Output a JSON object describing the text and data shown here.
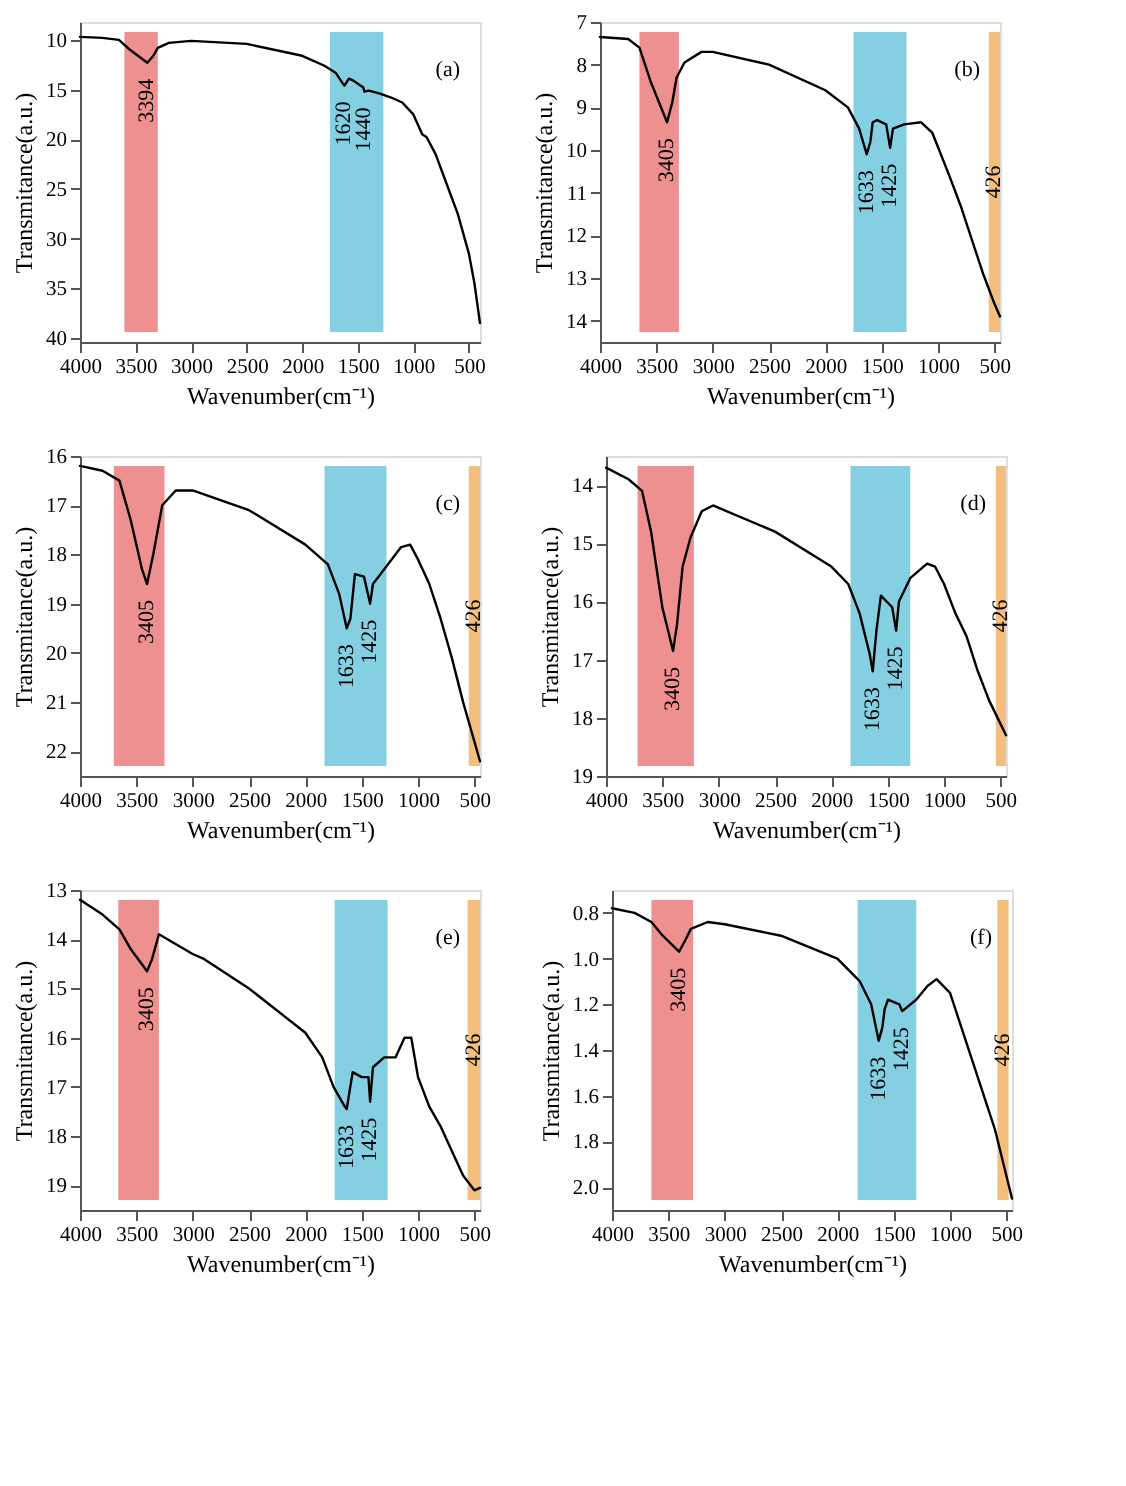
{
  "chart_data": [
    {
      "type": "line",
      "xlabel": "Wavenumber(cm⁻¹)",
      "ylabel": "Transmitance(a.u.)",
      "xlim": [
        4000,
        400
      ],
      "ylim": [
        40.4,
        8.2
      ],
      "xticks": [
        4000,
        3500,
        3000,
        2500,
        2000,
        1500,
        1000,
        500
      ],
      "yticks": [
        10,
        15,
        20,
        25,
        30,
        35,
        40
      ],
      "x": [
        4000,
        3800,
        3650,
        3550,
        3394,
        3340,
        3300,
        3200,
        3000,
        2500,
        2000,
        1800,
        1700,
        1640,
        1620,
        1580,
        1540,
        1450,
        1440,
        1400,
        1300,
        1200,
        1100,
        1000,
        920,
        880,
        800,
        700,
        600,
        500,
        450,
        400
      ],
      "series": [
        {
          "color": "#000000",
          "values": [
            9.7,
            9.8,
            10.0,
            11.0,
            12.3,
            11.6,
            10.8,
            10.3,
            10.1,
            10.4,
            11.6,
            12.6,
            13.3,
            14.3,
            14.6,
            13.9,
            14.1,
            14.8,
            15.2,
            15.1,
            15.4,
            15.8,
            16.3,
            17.5,
            19.5,
            19.8,
            21.5,
            24.5,
            27.5,
            31.5,
            34.5,
            38.5
          ]
        }
      ],
      "bands": [
        {
          "axis": "x",
          "from": 3600,
          "to": 3300,
          "color": "#e8696b"
        },
        {
          "axis": "x",
          "from": 1750,
          "to": 1270,
          "color": "#5bc0d8"
        }
      ],
      "annotations": [
        "(a)",
        {
          "text": "3394",
          "x": 3394,
          "y": 12.3
        },
        {
          "text": "1620",
          "x": 1620,
          "y": 14.6
        },
        {
          "text": "1440",
          "x": 1440,
          "y": 15.2
        }
      ]
    },
    {
      "type": "line",
      "xlabel": "Wavenumber(cm⁻¹)",
      "ylabel": "Transmitance(a.u.)",
      "xlim": [
        4000,
        450
      ],
      "ylim": [
        14.5,
        7
      ],
      "xticks": [
        4000,
        3500,
        3000,
        2500,
        2000,
        1500,
        1000,
        500
      ],
      "yticks": [
        7,
        8,
        9,
        10,
        11,
        12,
        13,
        14
      ],
      "x": [
        4000,
        3750,
        3650,
        3550,
        3405,
        3360,
        3320,
        3250,
        3100,
        3000,
        2500,
        2000,
        1800,
        1700,
        1633,
        1600,
        1580,
        1540,
        1460,
        1425,
        1400,
        1300,
        1150,
        1050,
        900,
        800,
        700,
        600,
        500,
        450
      ],
      "series": [
        {
          "color": "#000000",
          "values": [
            7.35,
            7.4,
            7.6,
            8.4,
            9.35,
            8.9,
            8.3,
            7.95,
            7.7,
            7.7,
            8.0,
            8.6,
            9.0,
            9.5,
            10.1,
            9.8,
            9.35,
            9.3,
            9.4,
            9.95,
            9.5,
            9.4,
            9.35,
            9.6,
            10.6,
            11.3,
            12.1,
            12.9,
            13.6,
            13.9
          ]
        }
      ],
      "bands": [
        {
          "axis": "x",
          "from": 3650,
          "to": 3300,
          "color": "#e8696b"
        },
        {
          "axis": "x",
          "from": 1750,
          "to": 1280,
          "color": "#5bc0d8"
        },
        {
          "axis": "x",
          "from": 550,
          "to": 450,
          "color": "#f0a850"
        }
      ],
      "annotations": [
        "(b)",
        {
          "text": "3405",
          "x": 3405,
          "y": 9.35
        },
        {
          "text": "1633",
          "x": 1633,
          "y": 10.1
        },
        {
          "text": "1425",
          "x": 1425,
          "y": 9.95
        },
        "426"
      ]
    },
    {
      "type": "line",
      "xlabel": "Wavenumber(cm⁻¹)",
      "ylabel": "Transmitance(a.u.)",
      "xlim": [
        4000,
        450
      ],
      "ylim": [
        22.5,
        16
      ],
      "xticks": [
        4000,
        3500,
        3000,
        2500,
        2000,
        1500,
        1000,
        500
      ],
      "yticks": [
        16,
        17,
        18,
        19,
        20,
        21,
        22
      ],
      "x": [
        4000,
        3800,
        3650,
        3550,
        3450,
        3405,
        3350,
        3270,
        3150,
        3000,
        2500,
        2000,
        1800,
        1700,
        1633,
        1600,
        1560,
        1480,
        1425,
        1400,
        1300,
        1150,
        1070,
        1000,
        900,
        800,
        700,
        600,
        500,
        450
      ],
      "series": [
        {
          "color": "#000000",
          "values": [
            16.2,
            16.3,
            16.5,
            17.3,
            18.3,
            18.6,
            18.0,
            17.0,
            16.7,
            16.7,
            17.1,
            17.8,
            18.2,
            18.8,
            19.5,
            19.3,
            18.4,
            18.45,
            19.0,
            18.6,
            18.3,
            17.85,
            17.8,
            18.1,
            18.6,
            19.3,
            20.1,
            21.0,
            21.8,
            22.2
          ]
        }
      ],
      "bands": [
        {
          "axis": "x",
          "from": 3700,
          "to": 3250,
          "color": "#e8696b"
        },
        {
          "axis": "x",
          "from": 1830,
          "to": 1280,
          "color": "#5bc0d8"
        },
        {
          "axis": "x",
          "from": 550,
          "to": 450,
          "color": "#f0a850"
        }
      ],
      "annotations": [
        "(c)",
        {
          "text": "3405",
          "x": 3405,
          "y": 18.6
        },
        {
          "text": "1633",
          "x": 1633,
          "y": 19.5
        },
        {
          "text": "1425",
          "x": 1425,
          "y": 19.0
        },
        "426"
      ]
    },
    {
      "type": "line",
      "xlabel": "Wavenumber(cm⁻¹)",
      "ylabel": "Transmitance(a.u.)",
      "xlim": [
        4000,
        450
      ],
      "ylim": [
        19,
        13.5
      ],
      "xticks": [
        4000,
        3500,
        3000,
        2500,
        2000,
        1500,
        1000,
        500
      ],
      "yticks": [
        14,
        15,
        16,
        17,
        18,
        19
      ],
      "x": [
        4000,
        3800,
        3680,
        3600,
        3500,
        3405,
        3370,
        3320,
        3250,
        3150,
        3050,
        2500,
        2000,
        1850,
        1750,
        1660,
        1633,
        1600,
        1560,
        1460,
        1425,
        1400,
        1300,
        1150,
        1080,
        1000,
        900,
        800,
        700,
        600,
        500,
        450
      ],
      "series": [
        {
          "color": "#000000",
          "values": [
            13.7,
            13.9,
            14.1,
            14.8,
            16.1,
            16.85,
            16.4,
            15.4,
            14.9,
            14.45,
            14.35,
            14.8,
            15.4,
            15.7,
            16.2,
            16.9,
            17.2,
            16.5,
            15.9,
            16.1,
            16.5,
            16.0,
            15.6,
            15.35,
            15.4,
            15.7,
            16.2,
            16.6,
            17.2,
            17.7,
            18.1,
            18.3
          ]
        }
      ],
      "bands": [
        {
          "axis": "x",
          "from": 3720,
          "to": 3220,
          "color": "#e8696b"
        },
        {
          "axis": "x",
          "from": 1830,
          "to": 1300,
          "color": "#5bc0d8"
        },
        {
          "axis": "x",
          "from": 540,
          "to": 450,
          "color": "#f0a850"
        }
      ],
      "annotations": [
        "(d)",
        {
          "text": "3405",
          "x": 3405,
          "y": 16.85
        },
        {
          "text": "1633",
          "x": 1633,
          "y": 17.2
        },
        {
          "text": "1425",
          "x": 1425,
          "y": 16.5
        },
        "426"
      ]
    },
    {
      "type": "line",
      "xlabel": "Wavenumber(cm⁻¹)",
      "ylabel": "Transmitance(a.u.)",
      "xlim": [
        4000,
        450
      ],
      "ylim": [
        19.5,
        13
      ],
      "xticks": [
        4000,
        3500,
        3000,
        2500,
        2000,
        1500,
        1000,
        500
      ],
      "yticks": [
        13,
        14,
        15,
        16,
        17,
        18,
        19
      ],
      "x": [
        4000,
        3800,
        3650,
        3550,
        3405,
        3360,
        3300,
        3000,
        2900,
        2500,
        2000,
        1850,
        1750,
        1650,
        1633,
        1580,
        1500,
        1440,
        1425,
        1400,
        1300,
        1200,
        1120,
        1060,
        1000,
        900,
        800,
        700,
        600,
        500,
        450
      ],
      "series": [
        {
          "color": "#000000",
          "values": [
            13.2,
            13.5,
            13.8,
            14.2,
            14.65,
            14.4,
            13.9,
            14.3,
            14.4,
            15.0,
            15.9,
            16.4,
            17.0,
            17.4,
            17.45,
            16.7,
            16.8,
            16.8,
            17.3,
            16.6,
            16.4,
            16.4,
            16.0,
            16.0,
            16.8,
            17.4,
            17.8,
            18.3,
            18.8,
            19.1,
            19.05
          ]
        }
      ],
      "bands": [
        {
          "axis": "x",
          "from": 3660,
          "to": 3300,
          "color": "#e8696b"
        },
        {
          "axis": "x",
          "from": 1740,
          "to": 1270,
          "color": "#5bc0d8"
        },
        {
          "axis": "x",
          "from": 560,
          "to": 450,
          "color": "#f0a850"
        }
      ],
      "annotations": [
        "(e)",
        {
          "text": "3405",
          "x": 3405,
          "y": 14.65
        },
        {
          "text": "1633",
          "x": 1633,
          "y": 17.45
        },
        {
          "text": "1425",
          "x": 1425,
          "y": 17.3
        },
        "426"
      ]
    },
    {
      "type": "line",
      "xlabel": "Wavenumber(cm⁻¹)",
      "ylabel": "Transmitance(a.u.)",
      "xlim": [
        4000,
        450
      ],
      "ylim": [
        2.1,
        0.7
      ],
      "xticks": [
        4000,
        3500,
        3000,
        2500,
        2000,
        1500,
        1000,
        500
      ],
      "yticks": [
        0.8,
        {
          "value": 1,
          "label": "1.0"
        },
        1.2,
        1.4,
        1.6,
        1.8,
        {
          "value": 2,
          "label": "2.0"
        }
      ],
      "x": [
        4000,
        3800,
        3650,
        3550,
        3405,
        3350,
        3300,
        3150,
        3000,
        2500,
        2000,
        1800,
        1700,
        1633,
        1600,
        1580,
        1550,
        1450,
        1425,
        1300,
        1200,
        1120,
        1000,
        900,
        800,
        700,
        600,
        500,
        450
      ],
      "series": [
        {
          "color": "#000000",
          "values": [
            0.78,
            0.8,
            0.84,
            0.9,
            0.97,
            0.92,
            0.87,
            0.84,
            0.85,
            0.9,
            1.0,
            1.1,
            1.2,
            1.36,
            1.3,
            1.22,
            1.18,
            1.2,
            1.23,
            1.18,
            1.12,
            1.09,
            1.15,
            1.3,
            1.45,
            1.6,
            1.75,
            1.95,
            2.05
          ]
        }
      ],
      "bands": [
        {
          "axis": "x",
          "from": 3650,
          "to": 3280,
          "color": "#e8696b"
        },
        {
          "axis": "x",
          "from": 1820,
          "to": 1300,
          "color": "#5bc0d8"
        },
        {
          "axis": "x",
          "from": 580,
          "to": 480,
          "color": "#f0a850"
        }
      ],
      "annotations": [
        "(f)",
        {
          "text": "3405",
          "x": 3405,
          "y": 0.97
        },
        {
          "text": "1633",
          "x": 1633,
          "y": 1.36
        },
        {
          "text": "1425",
          "x": 1425,
          "y": 1.23
        },
        "426"
      ]
    }
  ]
}
